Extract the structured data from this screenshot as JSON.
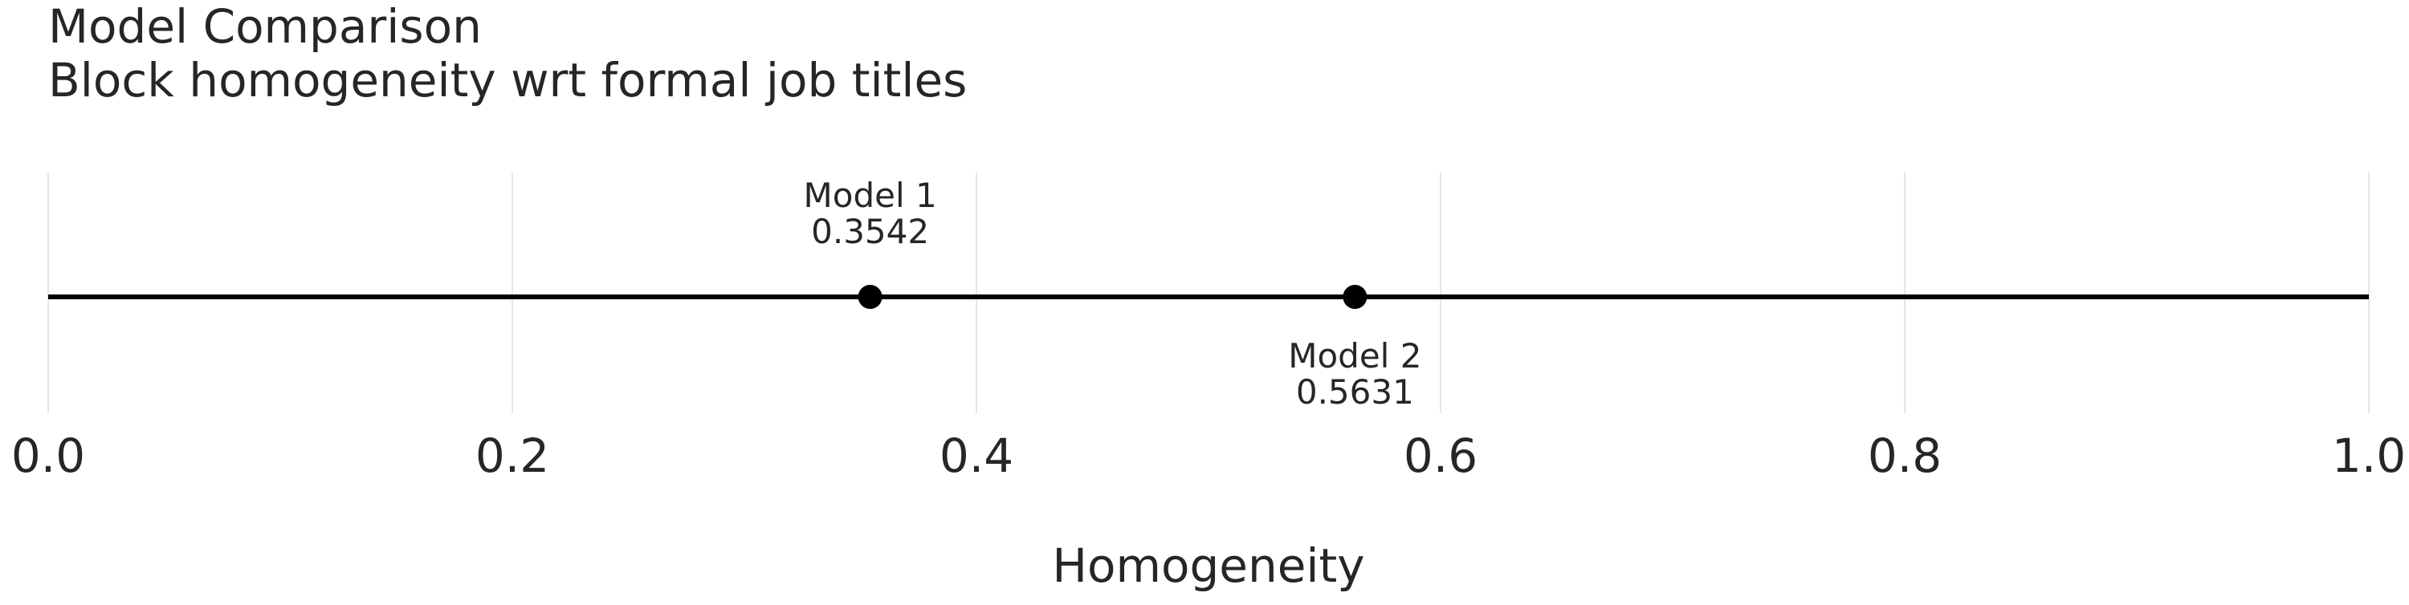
{
  "chart_data": {
    "type": "scatter",
    "title": "Model Comparison",
    "subtitle": "Block homogeneity wrt formal job titles",
    "xlabel": "Homogeneity",
    "ylabel": "",
    "xlim": [
      0,
      1
    ],
    "x_ticks": [
      0.0,
      0.2,
      0.4,
      0.6,
      0.8,
      1.0
    ],
    "x_tick_labels": [
      "0.0",
      "0.2",
      "0.4",
      "0.6",
      "0.8",
      "1.0"
    ],
    "grid": true,
    "points": [
      {
        "label": "Model 1",
        "value": 0.3542,
        "value_label": "0.3542",
        "label_side": "above"
      },
      {
        "label": "Model 2",
        "value": 0.5631,
        "value_label": "0.5631",
        "label_side": "below"
      }
    ],
    "colors": {
      "line": "#000000",
      "marker": "#000000",
      "grid": "#e6e6e6",
      "text": "#262626"
    }
  }
}
